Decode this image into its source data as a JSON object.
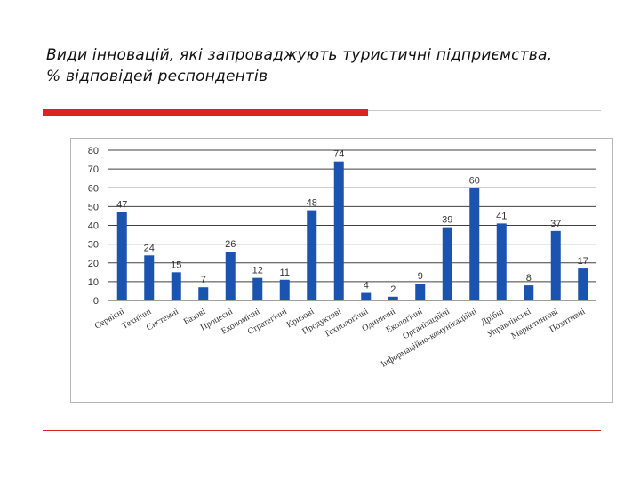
{
  "slide": {
    "title_line1": "Види інновацій, які запроваджують туристичні підприємства,",
    "title_line2": "% відповідей респондентів"
  },
  "colors": {
    "bar": "#1b54b0",
    "accent": "#d9251d",
    "gridline": "#404040",
    "axis_text": "#333333"
  },
  "chart_data": {
    "type": "bar",
    "categories": [
      "Сервісні",
      "Технічні",
      "Системні",
      "Базові",
      "Процесні",
      "Економічні",
      "Стратегічні",
      "Кризові",
      "Продуктові",
      "Технологічні",
      "Одиничні",
      "Екологічні",
      "Організаційні",
      "Інформаційно-комунікаційні",
      "Дрібні",
      "Управлінські",
      "Маркетингові",
      "Позитивні"
    ],
    "values": [
      47,
      24,
      15,
      7,
      26,
      12,
      11,
      48,
      74,
      4,
      2,
      9,
      39,
      60,
      41,
      8,
      37,
      17
    ],
    "data_labels": [
      "47",
      "24",
      "15",
      "7",
      "26",
      "12",
      "11",
      "48",
      "74",
      "4",
      "2",
      "9",
      "39",
      "60",
      "41",
      "8",
      "37",
      "17"
    ],
    "yticks": [
      "0",
      "10",
      "20",
      "30",
      "40",
      "50",
      "60",
      "70",
      "80"
    ],
    "ylim": [
      0,
      80
    ],
    "grid": true,
    "legend": "none"
  }
}
